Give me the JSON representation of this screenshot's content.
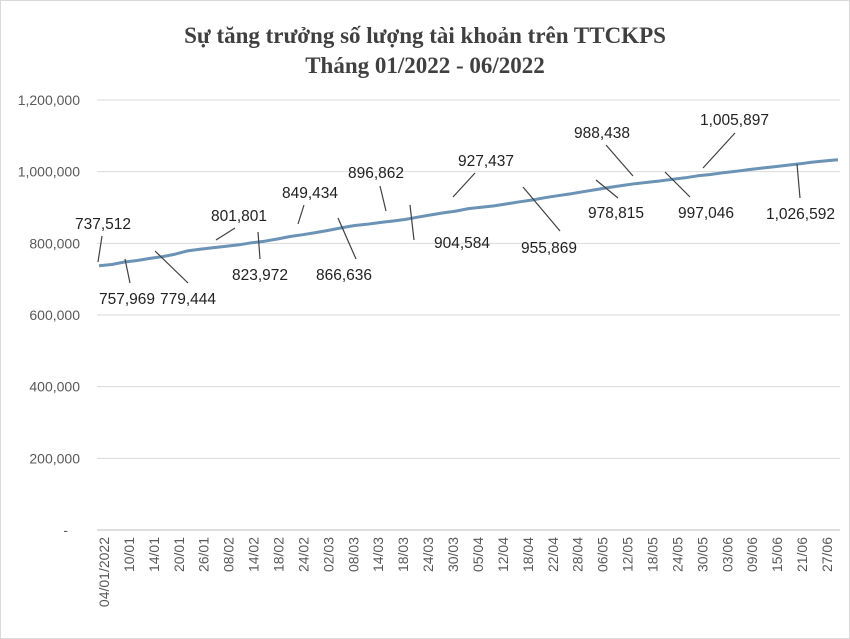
{
  "chart_data": {
    "type": "line",
    "title": [
      "Sự tăng trưởng số lượng tài khoản trên TTCKPS",
      "Tháng 01/2022 - 06/2022"
    ],
    "xlabel": "",
    "ylabel": "",
    "ylim": [
      0,
      1200000
    ],
    "yticks": [
      {
        "v": 0,
        "label": "-"
      },
      {
        "v": 200000,
        "label": "200,000"
      },
      {
        "v": 400000,
        "label": "400,000"
      },
      {
        "v": 600000,
        "label": "600,000"
      },
      {
        "v": 800000,
        "label": "800,000"
      },
      {
        "v": 1000000,
        "label": "1,000,000"
      },
      {
        "v": 1200000,
        "label": "1,200,000"
      }
    ],
    "grid": true,
    "legend": "none",
    "series_color": "#6b93b5",
    "x_tick_labels": [
      "04/01/2022",
      "10/01",
      "14/01",
      "20/01",
      "26/01",
      "08/02",
      "14/02",
      "18/02",
      "24/02",
      "02/03",
      "08/03",
      "14/03",
      "18/03",
      "24/03",
      "30/03",
      "05/04",
      "12/04",
      "18/04",
      "22/04",
      "28/04",
      "06/05",
      "12/05",
      "18/05",
      "24/05",
      "30/05",
      "03/06",
      "09/06",
      "15/06",
      "21/06",
      "27/06"
    ],
    "series": [
      {
        "values": [
          737512,
          741000,
          748000,
          752000,
          757969,
          763000,
          770000,
          779444,
          784000,
          788000,
          792000,
          796000,
          801801,
          806000,
          812000,
          819000,
          823972,
          830000,
          836000,
          843000,
          849434,
          853000,
          858000,
          862000,
          866636,
          873000,
          879000,
          885000,
          890000,
          896862,
          900500,
          904584,
          910000,
          916000,
          921000,
          927437,
          933000,
          938000,
          944000,
          950000,
          955869,
          961000,
          966000,
          970000,
          974000,
          978815,
          983000,
          988438,
          992000,
          997046,
          1001000,
          1005897,
          1010000,
          1014000,
          1018000,
          1022000,
          1026592,
          1030000,
          1033000
        ]
      }
    ],
    "data_labels": [
      {
        "i": 0,
        "text": "737,512"
      },
      {
        "i": 4,
        "text": "757,969"
      },
      {
        "i": 7,
        "text": "779,444"
      },
      {
        "i": 12,
        "text": "801,801"
      },
      {
        "i": 16,
        "text": "823,972"
      },
      {
        "i": 20,
        "text": "849,434"
      },
      {
        "i": 24,
        "text": "866,636"
      },
      {
        "i": 29,
        "text": "896,862"
      },
      {
        "i": 31,
        "text": "904,584"
      },
      {
        "i": 35,
        "text": "927,437"
      },
      {
        "i": 40,
        "text": "955,869"
      },
      {
        "i": 45,
        "text": "978,815"
      },
      {
        "i": 47,
        "text": "988,438"
      },
      {
        "i": 49,
        "text": "997,046"
      },
      {
        "i": 51,
        "text": "1,005,897"
      },
      {
        "i": 56,
        "text": "1,026,592"
      }
    ]
  }
}
